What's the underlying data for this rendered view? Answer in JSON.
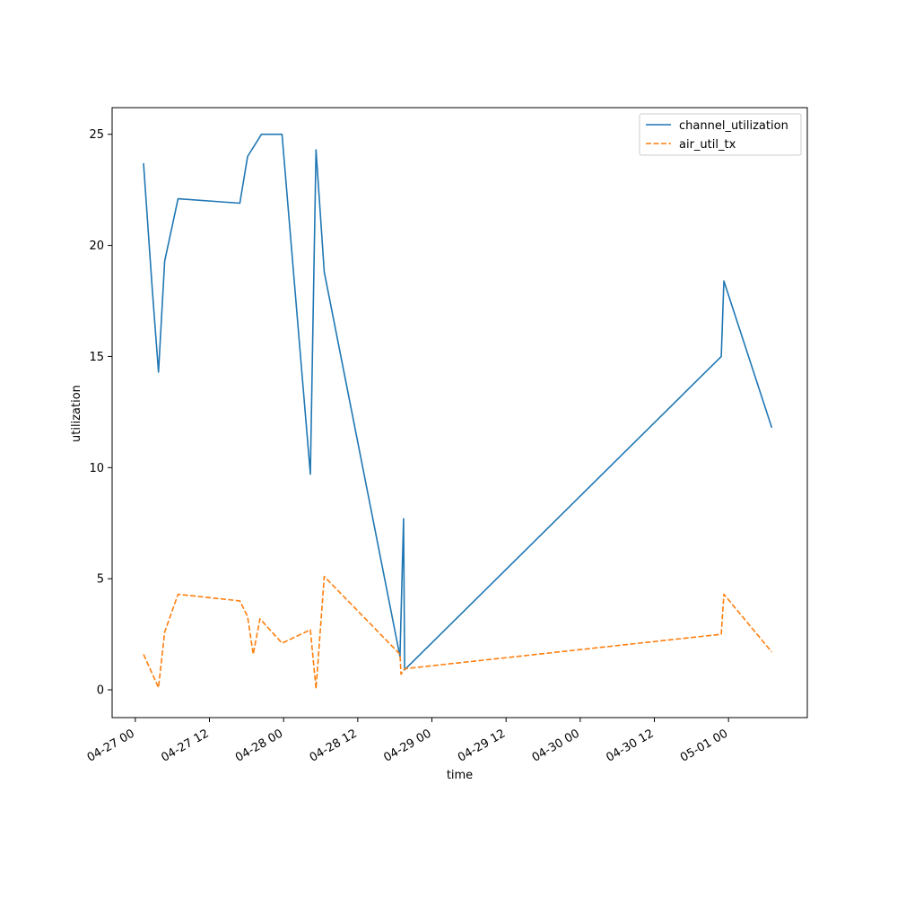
{
  "chart_data": {
    "type": "line",
    "xlabel": "time",
    "ylabel": "utilization",
    "x_tick_labels": [
      "04-27 00",
      "04-27 12",
      "04-28 00",
      "04-28 12",
      "04-29 00",
      "04-29 12",
      "04-30 00",
      "04-30 12",
      "05-01 00"
    ],
    "y_tick_labels": [
      "0",
      "5",
      "10",
      "15",
      "20",
      "25"
    ],
    "xlim": [
      "2024-04-26 20:15",
      "2024-05-01 12:45"
    ],
    "ylim": [
      -1.25,
      26.2
    ],
    "legend_placement": "top-right",
    "grid": false,
    "series": [
      {
        "name": "channel_utilization",
        "color": "#1f77b4",
        "style": "solid",
        "points": [
          [
            "2024-04-27 01:20",
            23.7
          ],
          [
            "2024-04-27 02:45",
            18.0
          ],
          [
            "2024-04-27 03:45",
            14.3
          ],
          [
            "2024-04-27 04:45",
            19.3
          ],
          [
            "2024-04-27 06:55",
            22.1
          ],
          [
            "2024-04-27 16:55",
            21.9
          ],
          [
            "2024-04-27 18:10",
            24.0
          ],
          [
            "2024-04-27 20:25",
            25.0
          ],
          [
            "2024-04-27 23:45",
            25.0
          ],
          [
            "2024-04-28 04:20",
            9.7
          ],
          [
            "2024-04-28 05:15",
            24.3
          ],
          [
            "2024-04-28 06:35",
            18.8
          ],
          [
            "2024-04-28 18:50",
            1.5
          ],
          [
            "2024-04-28 19:25",
            7.7
          ],
          [
            "2024-04-28 19:35",
            0.9
          ],
          [
            "2024-04-30 22:50",
            15.0
          ],
          [
            "2024-04-30 23:15",
            18.4
          ],
          [
            "2024-05-01 07:00",
            11.8
          ]
        ]
      },
      {
        "name": "air_util_tx",
        "color": "#ff7f0e",
        "style": "dashed",
        "points": [
          [
            "2024-04-27 01:20",
            1.6
          ],
          [
            "2024-04-27 03:45",
            0.1
          ],
          [
            "2024-04-27 04:45",
            2.6
          ],
          [
            "2024-04-27 06:55",
            4.3
          ],
          [
            "2024-04-27 16:55",
            4.0
          ],
          [
            "2024-04-27 18:10",
            3.3
          ],
          [
            "2024-04-27 19:05",
            1.6
          ],
          [
            "2024-04-27 20:10",
            3.2
          ],
          [
            "2024-04-27 23:45",
            2.1
          ],
          [
            "2024-04-28 04:20",
            2.7
          ],
          [
            "2024-04-28 05:15",
            0.05
          ],
          [
            "2024-04-28 06:35",
            5.1
          ],
          [
            "2024-04-28 18:50",
            1.6
          ],
          [
            "2024-04-28 19:00",
            0.7
          ],
          [
            "2024-04-28 19:35",
            0.95
          ],
          [
            "2024-04-30 22:50",
            2.5
          ],
          [
            "2024-04-30 23:15",
            4.3
          ],
          [
            "2024-05-01 07:00",
            1.7
          ]
        ]
      }
    ]
  }
}
